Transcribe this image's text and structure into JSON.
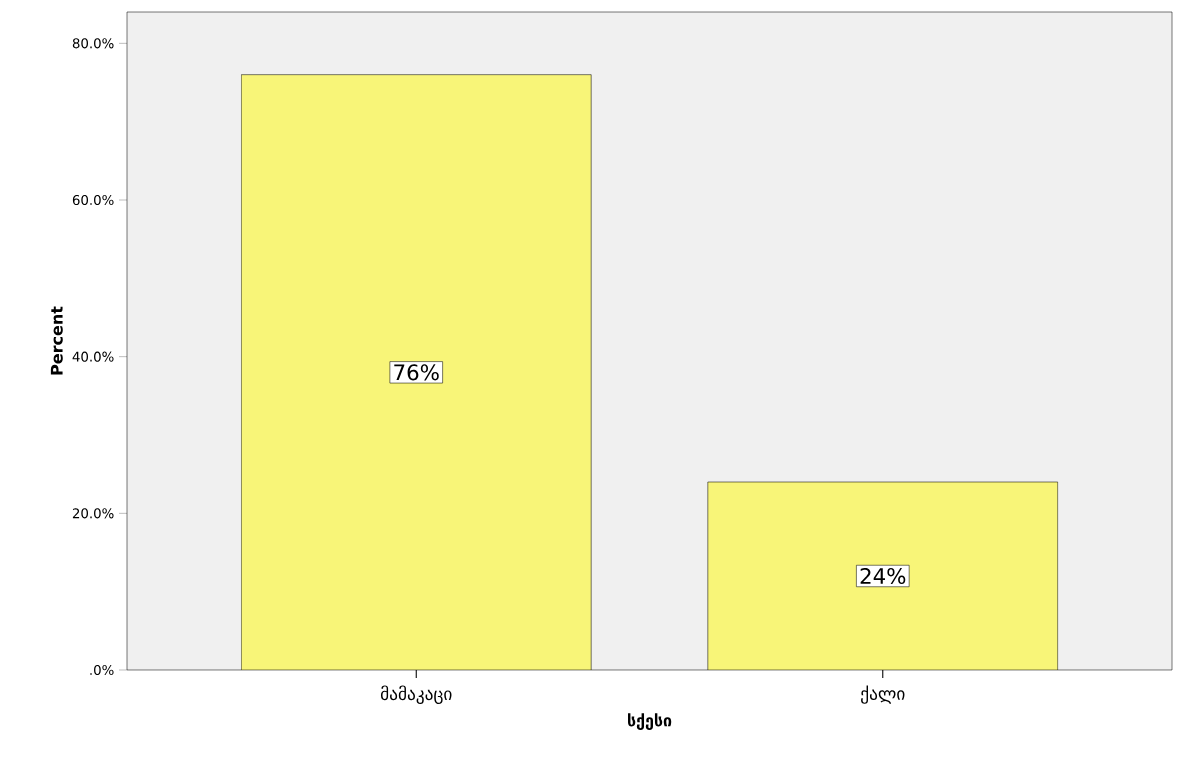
{
  "chart_data": {
    "type": "bar",
    "xlabel": "სქესი",
    "ylabel": "Percent",
    "categories": [
      "მამაკაცი",
      "ქალი"
    ],
    "values": [
      76,
      24
    ],
    "color": "#f8f578",
    "value_labels": [
      "76%",
      "24%"
    ],
    "ylim": [
      0,
      84
    ],
    "yticks": [
      {
        "value": 0,
        "label": ".0%"
      },
      {
        "value": 20,
        "label": "20.0%"
      },
      {
        "value": 40,
        "label": "40.0%"
      },
      {
        "value": 60,
        "label": "60.0%"
      },
      {
        "value": 80,
        "label": "80.0%"
      }
    ],
    "grid": false
  }
}
